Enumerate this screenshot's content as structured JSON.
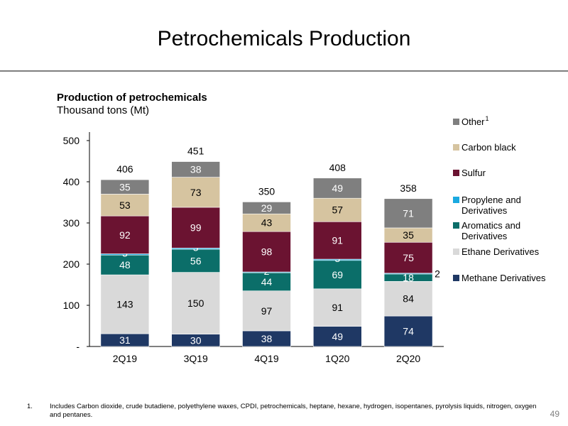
{
  "page": {
    "title": "Petrochemicals Production",
    "footnote_number": "1.",
    "footnote": "Includes Carbon dioxide, crude butadiene, polyethylene waxes, CPDI, petrochemicals, heptane, hexane, hydrogen, isopentanes, pyrolysis liquids, nitrogen, oxygen and pentanes.",
    "page_number": "49"
  },
  "chart_data": {
    "type": "bar",
    "stacked": true,
    "title": "Production of petrochemicals",
    "subtitle": "Thousand tons (Mt)",
    "categories": [
      "2Q19",
      "3Q19",
      "4Q19",
      "1Q20",
      "2Q20"
    ],
    "ylim": [
      0,
      500
    ],
    "yticks": [
      0,
      100,
      200,
      300,
      400,
      500
    ],
    "ytick_labels": [
      "-",
      "100",
      "200",
      "300",
      "400",
      "500"
    ],
    "grid": false,
    "legend_position": "right",
    "totals": [
      "406",
      "451",
      "350",
      "408",
      "358"
    ],
    "series": [
      {
        "name": "Methane Derivatives",
        "color": "#1f3864",
        "label_color": "#ffffff",
        "values": [
          31,
          30,
          38,
          49,
          74
        ]
      },
      {
        "name": "Ethane Derivatives",
        "color": "#d9d9d9",
        "label_color": "#000000",
        "values": [
          143,
          150,
          97,
          91,
          84
        ]
      },
      {
        "name": "Aromatics and Derivatives",
        "color": "#0b6e69",
        "label_color": "#ffffff",
        "values": [
          48,
          56,
          44,
          69,
          18
        ]
      },
      {
        "name": "Propylene and Derivatives",
        "color": "#1aa9e0",
        "label_color": "#ffffff",
        "values": [
          3,
          3,
          2,
          3,
          2
        ]
      },
      {
        "name": "Sulfur",
        "color": "#6b1331",
        "label_color": "#ffffff",
        "values": [
          92,
          99,
          98,
          91,
          75
        ]
      },
      {
        "name": "Carbon black",
        "color": "#d6c4a0",
        "label_color": "#000000",
        "values": [
          53,
          73,
          43,
          57,
          35
        ]
      },
      {
        "name": "Other",
        "superscript": "1",
        "color": "#7f7f7f",
        "label_color": "#ffffff",
        "values": [
          35,
          38,
          29,
          49,
          71
        ]
      }
    ]
  }
}
